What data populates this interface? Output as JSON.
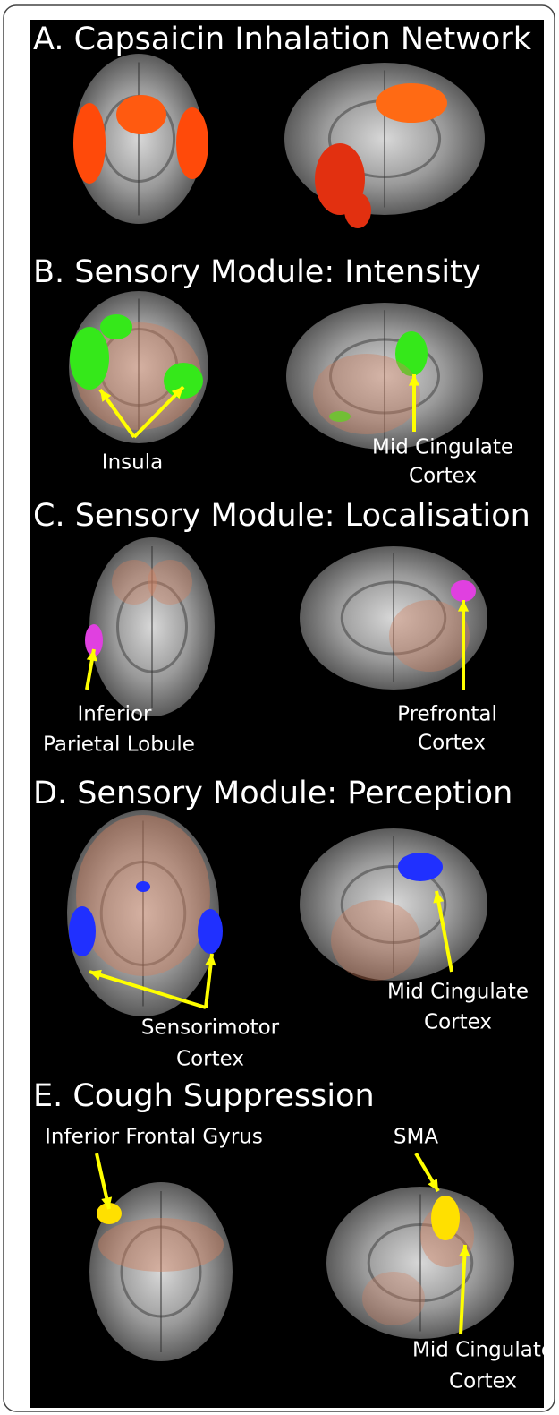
{
  "panels": [
    {
      "title": "A. Capsaicin Inhalation Network",
      "labels": []
    },
    {
      "title": "B. Sensory Module: Intensity",
      "labels": [
        {
          "lines": [
            "Insula"
          ]
        },
        {
          "lines": [
            "Mid Cingulate",
            "Cortex"
          ]
        }
      ]
    },
    {
      "title": "C. Sensory Module: Localisation",
      "labels": [
        {
          "lines": [
            "Inferior",
            "Parietal Lobule"
          ]
        },
        {
          "lines": [
            "Prefrontal",
            "Cortex"
          ]
        }
      ]
    },
    {
      "title": "D. Sensory Module: Perception",
      "labels": [
        {
          "lines": [
            "Sensorimotor",
            "Cortex"
          ]
        },
        {
          "lines": [
            "Mid Cingulate",
            "Cortex"
          ]
        }
      ]
    },
    {
      "title": "E. Cough Suppression",
      "labels": [
        {
          "lines": [
            "Inferior Frontal Gyrus"
          ]
        },
        {
          "lines": [
            "SMA"
          ]
        },
        {
          "lines": [
            "Mid Cingulate",
            "Cortex"
          ]
        }
      ]
    }
  ]
}
